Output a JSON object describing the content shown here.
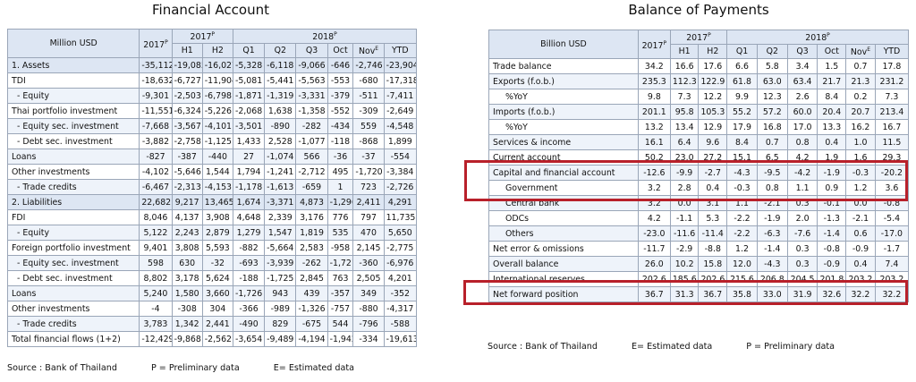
{
  "left": {
    "title": "Financial Account",
    "unit": "Million USD",
    "year_prev": "2017",
    "year_prev_sup": "P",
    "group_prev": "2017",
    "group_prev_sup": "P",
    "group_cur": "2018",
    "group_cur_sup": "P",
    "cols": [
      "H1",
      "H2",
      "Q1",
      "Q2",
      "Q3",
      "Oct",
      "Nov",
      "YTD"
    ],
    "nov_sup": "E",
    "rows": [
      {
        "label": "1. Assets",
        "cls": "sec",
        "values": [
          "-35,112",
          "-19,085",
          "-16,027",
          "-5,328",
          "-6,118",
          "-9,066",
          "-646",
          "-2,746",
          "-23,904"
        ]
      },
      {
        "label": "TDI",
        "cls": "",
        "values": [
          "-18,632",
          "-6,727",
          "-11,904",
          "-5,081",
          "-5,441",
          "-5,563",
          "-553",
          "-680",
          "-17,318"
        ]
      },
      {
        "label": "- Equity",
        "cls": "alt ind",
        "values": [
          "-9,301",
          "-2,503",
          "-6,798",
          "-1,871",
          "-1,319",
          "-3,331",
          "-379",
          "-511",
          "-7,411"
        ]
      },
      {
        "label": "Thai portfolio investment",
        "cls": "",
        "values": [
          "-11,551",
          "-6,324",
          "-5,226",
          "-2,068",
          "1,638",
          "-1,358",
          "-552",
          "-309",
          "-2,649"
        ]
      },
      {
        "label": "- Equity sec. investment",
        "cls": "alt ind",
        "values": [
          "-7,668",
          "-3,567",
          "-4,101",
          "-3,501",
          "-890",
          "-282",
          "-434",
          "559",
          "-4,548"
        ]
      },
      {
        "label": "- Debt sec. investment",
        "cls": "ind",
        "values": [
          "-3,882",
          "-2,758",
          "-1,125",
          "1,433",
          "2,528",
          "-1,077",
          "-118",
          "-868",
          "1,899"
        ]
      },
      {
        "label": "Loans",
        "cls": "alt",
        "values": [
          "-827",
          "-387",
          "-440",
          "27",
          "-1,074",
          "566",
          "-36",
          "-37",
          "-554"
        ]
      },
      {
        "label": "Other investments",
        "cls": "",
        "values": [
          "-4,102",
          "-5,646",
          "1,544",
          "1,794",
          "-1,241",
          "-2,712",
          "495",
          "-1,720",
          "-3,384"
        ]
      },
      {
        "label": "- Trade credits",
        "cls": "alt ind",
        "values": [
          "-6,467",
          "-2,313",
          "-4,153",
          "-1,178",
          "-1,613",
          "-659",
          "1",
          "723",
          "-2,726"
        ]
      },
      {
        "label": "2. Liabilities",
        "cls": "sec",
        "values": [
          "22,682",
          "9,217",
          "13,465",
          "1,674",
          "-3,371",
          "4,873",
          "-1,296",
          "2,411",
          "4,291"
        ]
      },
      {
        "label": "FDI",
        "cls": "",
        "values": [
          "8,046",
          "4,137",
          "3,908",
          "4,648",
          "2,339",
          "3,176",
          "776",
          "797",
          "11,735"
        ]
      },
      {
        "label": "- Equity",
        "cls": "alt ind",
        "values": [
          "5,122",
          "2,243",
          "2,879",
          "1,279",
          "1,547",
          "1,819",
          "535",
          "470",
          "5,650"
        ]
      },
      {
        "label": "Foreign portfolio investment",
        "cls": "",
        "values": [
          "9,401",
          "3,808",
          "5,593",
          "-882",
          "-5,664",
          "2,583",
          "-958",
          "2,145",
          "-2,775"
        ]
      },
      {
        "label": "- Equity sec. investment",
        "cls": "alt ind",
        "values": [
          "598",
          "630",
          "-32",
          "-693",
          "-3,939",
          "-262",
          "-1,721",
          "-360",
          "-6,976"
        ]
      },
      {
        "label": "- Debt sec. investment",
        "cls": "ind",
        "values": [
          "8,802",
          "3,178",
          "5,624",
          "-188",
          "-1,725",
          "2,845",
          "763",
          "2,505",
          "4,201"
        ]
      },
      {
        "label": "Loans",
        "cls": "alt",
        "values": [
          "5,240",
          "1,580",
          "3,660",
          "-1,726",
          "943",
          "439",
          "-357",
          "349",
          "-352"
        ]
      },
      {
        "label": "Other investments",
        "cls": "",
        "values": [
          "-4",
          "-308",
          "304",
          "-366",
          "-989",
          "-1,326",
          "-757",
          "-880",
          "-4,317"
        ]
      },
      {
        "label": "- Trade credits",
        "cls": "alt ind",
        "values": [
          "3,783",
          "1,342",
          "2,441",
          "-490",
          "829",
          "-675",
          "544",
          "-796",
          "-588"
        ]
      },
      {
        "label": "Total financial flows (1+2)",
        "cls": "",
        "values": [
          "-12,429",
          "-9,868",
          "-2,562",
          "-3,654",
          "-9,489",
          "-4,194",
          "-1,942",
          "-334",
          "-19,613"
        ]
      }
    ],
    "source": "Source : Bank of Thailand",
    "note_p": "P = Preliminary data",
    "note_e": "E= Estimated data"
  },
  "right": {
    "title": "Balance of Payments",
    "unit": "Billion USD",
    "year_prev": "2017",
    "year_prev_sup": "P",
    "group_prev": "2017",
    "group_prev_sup": "P",
    "group_cur": "2018",
    "group_cur_sup": "P",
    "cols": [
      "H1",
      "H2",
      "Q1",
      "Q2",
      "Q3",
      "Oct",
      "Nov",
      "YTD"
    ],
    "nov_sup": "E",
    "rows": [
      {
        "label": "Trade balance",
        "cls": "",
        "values": [
          "34.2",
          "16.6",
          "17.6",
          "6.6",
          "5.8",
          "3.4",
          "1.5",
          "0.7",
          "17.8"
        ]
      },
      {
        "label": "Exports (f.o.b.)",
        "cls": "alt",
        "values": [
          "235.3",
          "112.3",
          "122.9",
          "61.8",
          "63.0",
          "63.4",
          "21.7",
          "21.3",
          "231.2"
        ]
      },
      {
        "label": "%YoY",
        "cls": "indb",
        "values": [
          "9.8",
          "7.3",
          "12.2",
          "9.9",
          "12.3",
          "2.6",
          "8.4",
          "0.2",
          "7.3"
        ]
      },
      {
        "label": "Imports (f.o.b.)",
        "cls": "alt",
        "values": [
          "201.1",
          "95.8",
          "105.3",
          "55.2",
          "57.2",
          "60.0",
          "20.4",
          "20.7",
          "213.4"
        ]
      },
      {
        "label": "%YoY",
        "cls": "indb",
        "values": [
          "13.2",
          "13.4",
          "12.9",
          "17.9",
          "16.8",
          "17.0",
          "13.3",
          "16.2",
          "16.7"
        ]
      },
      {
        "label": "Services & income",
        "cls": "alt",
        "values": [
          "16.1",
          "6.4",
          "9.6",
          "8.4",
          "0.7",
          "0.8",
          "0.4",
          "1.0",
          "11.5"
        ]
      },
      {
        "label": "Current account",
        "cls": "",
        "values": [
          "50.2",
          "23.0",
          "27.2",
          "15.1",
          "6.5",
          "4.2",
          "1.9",
          "1.6",
          "29.3"
        ]
      },
      {
        "label": "Capital and financial account",
        "cls": "alt",
        "values": [
          "-12.6",
          "-9.9",
          "-2.7",
          "-4.3",
          "-9.5",
          "-4.2",
          "-1.9",
          "-0.3",
          "-20.2"
        ]
      },
      {
        "label": "Government",
        "cls": "indb",
        "values": [
          "3.2",
          "2.8",
          "0.4",
          "-0.3",
          "0.8",
          "1.1",
          "0.9",
          "1.2",
          "3.6"
        ]
      },
      {
        "label": "Central bank",
        "cls": "alt indb",
        "values": [
          "3.2",
          "0.0",
          "3.1",
          "1.1",
          "-2.1",
          "0.3",
          "-0.1",
          "0.0",
          "-0.8"
        ]
      },
      {
        "label": "ODCs",
        "cls": "indb",
        "values": [
          "4.2",
          "-1.1",
          "5.3",
          "-2.2",
          "-1.9",
          "2.0",
          "-1.3",
          "-2.1",
          "-5.4"
        ]
      },
      {
        "label": "Others",
        "cls": "alt indb",
        "values": [
          "-23.0",
          "-11.6",
          "-11.4",
          "-2.2",
          "-6.3",
          "-7.6",
          "-1.4",
          "0.6",
          "-17.0"
        ]
      },
      {
        "label": "Net error & omissions",
        "cls": "",
        "values": [
          "-11.7",
          "-2.9",
          "-8.8",
          "1.2",
          "-1.4",
          "0.3",
          "-0.8",
          "-0.9",
          "-1.7"
        ]
      },
      {
        "label": "Overall balance",
        "cls": "alt",
        "values": [
          "26.0",
          "10.2",
          "15.8",
          "12.0",
          "-4.3",
          "0.3",
          "-0.9",
          "0.4",
          "7.4"
        ]
      },
      {
        "label": "International reserves",
        "cls": "",
        "values": [
          "202.6",
          "185.6",
          "202.6",
          "215.6",
          "206.8",
          "204.5",
          "201.8",
          "203.2",
          "203.2"
        ]
      },
      {
        "label": "Net forward position",
        "cls": "alt",
        "values": [
          "36.7",
          "31.3",
          "36.7",
          "35.8",
          "33.0",
          "31.9",
          "32.6",
          "32.2",
          "32.2"
        ]
      }
    ],
    "source": "Source : Bank of Thailand",
    "note_e": "E= Estimated data",
    "note_p": "P = Preliminary data"
  }
}
